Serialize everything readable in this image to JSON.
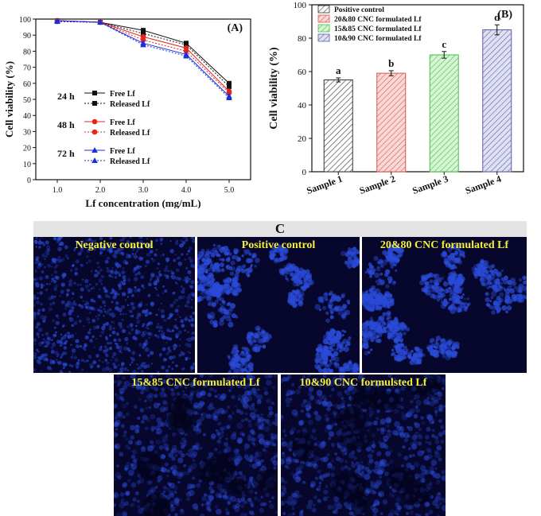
{
  "chart_data": [
    {
      "type": "line",
      "panel_label": "(A)",
      "xlabel": "Lf concentration (mg/mL)",
      "ylabel": "Cell viability (%)",
      "x": [
        1.0,
        2.0,
        3.0,
        4.0,
        5.0
      ],
      "x_tick_labels": [
        "1.0",
        "2.0",
        "3.0",
        "4.0",
        "5.0"
      ],
      "xlim": [
        0.5,
        5.5
      ],
      "ylim": [
        0,
        100
      ],
      "y_ticks": [
        0,
        10,
        20,
        30,
        40,
        50,
        60,
        70,
        80,
        90,
        100
      ],
      "legend_groups": [
        {
          "time": "24 h",
          "color": "#111111",
          "marker": "square",
          "series": [
            {
              "name": "Free Lf",
              "style": "solid",
              "values": [
                99,
                98,
                93,
                85,
                60
              ]
            },
            {
              "name": "Released Lf",
              "style": "dotted",
              "values": [
                98.5,
                98,
                91,
                84,
                58
              ]
            }
          ]
        },
        {
          "time": "48 h",
          "color": "#e8231c",
          "marker": "circle",
          "series": [
            {
              "name": "Free Lf",
              "style": "solid",
              "values": [
                99,
                98,
                89,
                82,
                55
              ]
            },
            {
              "name": "Released Lf",
              "style": "dotted",
              "values": [
                98.5,
                98,
                87,
                80,
                54
              ]
            }
          ]
        },
        {
          "time": "72 h",
          "color": "#1b2fd9",
          "marker": "triangle",
          "series": [
            {
              "name": "Free Lf",
              "style": "solid",
              "values": [
                99,
                98,
                85,
                78,
                52
              ]
            },
            {
              "name": "Released Lf",
              "style": "dotted",
              "values": [
                98.5,
                98,
                84,
                77,
                51
              ]
            }
          ]
        }
      ],
      "grid": false,
      "legend_placement": "center-left"
    },
    {
      "type": "bar",
      "panel_label": "(B)",
      "ylabel": "Cell viability (%)",
      "categories": [
        "Sample 1",
        "Sample 2",
        "Sample 3",
        "Sample 4"
      ],
      "values": [
        55,
        59,
        70,
        85
      ],
      "errors": [
        1.2,
        1.5,
        2.0,
        3.0
      ],
      "significance_letters": [
        "a",
        "b",
        "c",
        "d"
      ],
      "legend": [
        "Positive control",
        "20&80 CNC formulated Lf",
        "15&85 CNC formulated Lf",
        "10&90 CNC formulated Lf"
      ],
      "colors": [
        "#333333",
        "#d9534f",
        "#4cbb4c",
        "#5b5fa8"
      ],
      "fills": [
        "#ffffff",
        "#f9d9d6",
        "#d6f5d4",
        "#dfe0f2"
      ],
      "ylim": [
        0,
        100
      ],
      "y_ticks": [
        0,
        20,
        40,
        60,
        80,
        100
      ],
      "grid": false,
      "legend_placement": "top-left"
    }
  ],
  "panel_c": {
    "title": "C",
    "images": [
      {
        "label": "Negative control",
        "pattern": "dense"
      },
      {
        "label": "Positive control",
        "pattern": "clusters"
      },
      {
        "label": "20&80 CNC formulated Lf",
        "pattern": "clusters"
      },
      {
        "label": "15&85 CNC formulated Lf",
        "pattern": "diffuse"
      },
      {
        "label": "10&90 CNC formulsted Lf",
        "pattern": "diffuse"
      }
    ],
    "colors": {
      "background": "#07072e",
      "cells": "#2a4bd8",
      "label": "#f2ee3a"
    }
  }
}
